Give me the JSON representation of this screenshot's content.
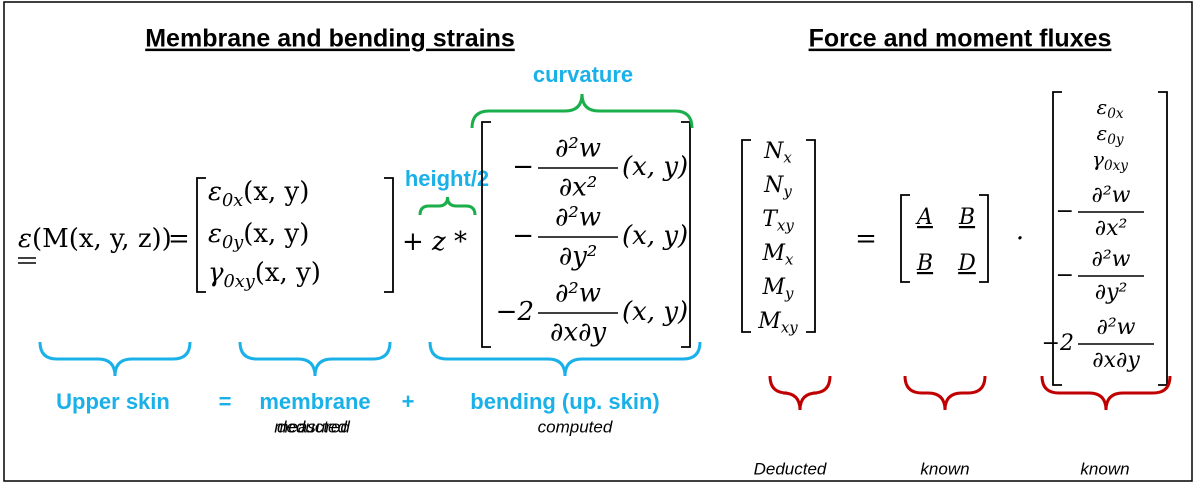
{
  "headings": {
    "strains": "Membrane and bending strains",
    "fluxes": "Force and moment fluxes"
  },
  "strain_equation": {
    "lhs": {
      "base": "ε",
      "args": "(M(x, y, z))"
    },
    "equals": "=",
    "membrane": [
      {
        "base": "ε",
        "sub": "0x",
        "args": "(x, y)"
      },
      {
        "base": "ε",
        "sub": "0y",
        "args": "(x, y)"
      },
      {
        "base": "γ",
        "sub": "0xy",
        "args": "(x, y)"
      }
    ],
    "operator": "+ z *",
    "bending": [
      {
        "sign": "−",
        "num": "∂²w",
        "den": "∂x²",
        "args": "(x, y)"
      },
      {
        "sign": "−",
        "num": "∂²w",
        "den": "∂y²",
        "args": "(x, y)"
      },
      {
        "sign": "−2",
        "num": "∂²w",
        "den": "∂x∂y",
        "args": "(x, y)"
      }
    ],
    "curvature": "curvature",
    "height": "height/2"
  },
  "strain_labels": [
    {
      "title": "Upper skin",
      "note": "measured"
    },
    {
      "title": "membrane",
      "note": "deducted"
    },
    {
      "title": "bending (up. skin)",
      "note": "computed"
    }
  ],
  "strain_operators": [
    "=",
    "+"
  ],
  "flux_equation": {
    "fluxes": [
      {
        "base": "N",
        "sub": "x"
      },
      {
        "base": "N",
        "sub": "y"
      },
      {
        "base": "T",
        "sub": "xy"
      },
      {
        "base": "M",
        "sub": "x"
      },
      {
        "base": "M",
        "sub": "y"
      },
      {
        "base": "M",
        "sub": "xy"
      }
    ],
    "equals": "=",
    "stiffness": [
      [
        "A",
        "B"
      ],
      [
        "B",
        "D"
      ]
    ],
    "dot": "·",
    "strains": [
      {
        "base": "ε",
        "sub": "0x"
      },
      {
        "base": "ε",
        "sub": "0y"
      },
      {
        "base": "γ",
        "sub": "0xy"
      }
    ],
    "curvatures": [
      {
        "sign": "−",
        "num": "∂²w",
        "den": "∂x²"
      },
      {
        "sign": "−",
        "num": "∂²w",
        "den": "∂y²"
      },
      {
        "sign": "−2",
        "num": "∂²w",
        "den": "∂x∂y"
      }
    ]
  },
  "flux_labels": [
    "Deducted",
    "known",
    "known"
  ]
}
